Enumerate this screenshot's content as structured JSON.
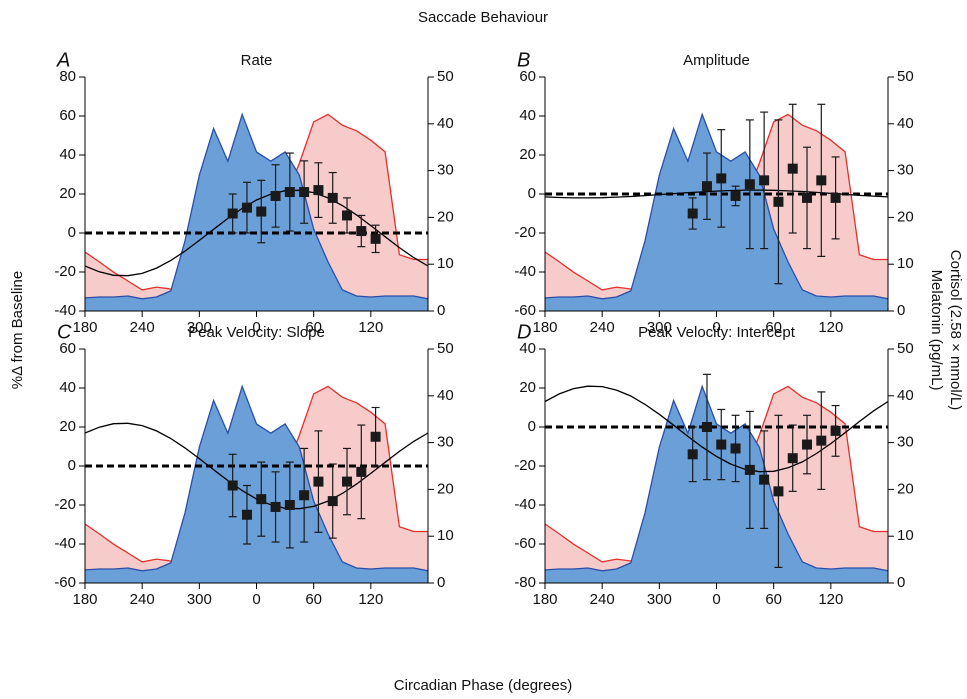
{
  "title": "Saccade Behaviour",
  "xlabel": "Circadian Phase (degrees)",
  "ylabel": "%Δ from Baseline",
  "y2label": [
    "Cortisol (2.58 × mmol/L)",
    "Melatonin (pg/mL)"
  ],
  "chart_data": [
    {
      "type": "line",
      "panel": "A",
      "title": "Rate",
      "x": [
        180,
        195,
        210,
        225,
        240,
        255,
        270,
        285,
        300,
        315,
        330,
        345,
        360,
        375,
        390,
        405,
        420,
        435,
        450,
        465,
        480,
        495,
        510,
        525,
        540
      ],
      "xlim": [
        180,
        540
      ],
      "xticks": [
        180,
        240,
        300,
        {
          "value": 360,
          "label": "0"
        },
        {
          "value": 420,
          "label": "60"
        },
        {
          "value": 480,
          "label": "120"
        }
      ],
      "ylim": [
        -40,
        80
      ],
      "yticks": [
        -40,
        -20,
        0,
        20,
        40,
        60,
        80
      ],
      "y2lim": [
        0,
        50
      ],
      "y2ticks": [
        0,
        10,
        20,
        30,
        40,
        50
      ],
      "hline": 0,
      "series": [
        {
          "axis": "y2",
          "mark": "area",
          "color": "#e3302b",
          "fill": "#f8cbcb",
          "values": [
            12.6,
            10.5,
            8.3,
            6.4,
            4.5,
            5.1,
            4.7,
            4.5,
            5.1,
            4.9,
            6.4,
            8.8,
            12,
            17,
            23.7,
            31.6,
            40.4,
            42,
            39.7,
            38.5,
            36.5,
            34,
            12,
            11,
            11
          ]
        },
        {
          "axis": "y2",
          "mark": "area",
          "color": "#2b4fa8",
          "fill": "#6a9fd8",
          "values": [
            2.8,
            3.0,
            3.0,
            3.2,
            2.6,
            3.0,
            4.3,
            15,
            29,
            39,
            32,
            42,
            34,
            32,
            34,
            29,
            17.5,
            10.5,
            4.5,
            3.2,
            3.0,
            3.2,
            3.2,
            3.2,
            2.6
          ]
        },
        {
          "mark": "line",
          "color": "#000000",
          "values": [
            -16.9,
            -19.9,
            -21.7,
            -21.9,
            -20.7,
            -18.0,
            -14.1,
            -9.3,
            -3.8,
            1.9,
            7.5,
            12.6,
            16.9,
            19.9,
            21.7,
            21.9,
            20.7,
            18.0,
            14.1,
            9.3,
            3.8,
            -1.9,
            -7.5,
            -12.6,
            -16.9
          ]
        },
        {
          "mark": "points",
          "color": "#1a1a1a",
          "x": [
            335,
            350,
            365,
            380,
            395,
            410,
            425,
            440,
            455,
            470,
            485
          ],
          "values": [
            10,
            13,
            11,
            19,
            21,
            21,
            22,
            18,
            9,
            1,
            -3
          ],
          "errors": [
            10,
            13,
            16,
            16,
            20,
            16,
            14,
            13,
            9,
            8,
            7
          ]
        }
      ]
    },
    {
      "type": "line",
      "panel": "B",
      "title": "Amplitude",
      "x": [
        180,
        195,
        210,
        225,
        240,
        255,
        270,
        285,
        300,
        315,
        330,
        345,
        360,
        375,
        390,
        405,
        420,
        435,
        450,
        465,
        480,
        495,
        510,
        525,
        540
      ],
      "xlim": [
        180,
        540
      ],
      "xticks": [
        180,
        240,
        300,
        {
          "value": 360,
          "label": "0"
        },
        {
          "value": 420,
          "label": "60"
        },
        {
          "value": 480,
          "label": "120"
        }
      ],
      "ylim": [
        -60,
        60
      ],
      "yticks": [
        -60,
        -40,
        -20,
        0,
        20,
        40,
        60
      ],
      "y2lim": [
        0,
        50
      ],
      "y2ticks": [
        0,
        10,
        20,
        30,
        40,
        50
      ],
      "hline": 0,
      "series": [
        {
          "axis": "y2",
          "mark": "area",
          "color": "#e3302b",
          "fill": "#f8cbcb",
          "values": [
            12.6,
            10.5,
            8.3,
            6.4,
            4.5,
            5.1,
            4.7,
            4.5,
            5.1,
            4.9,
            6.4,
            8.8,
            12,
            17,
            23.7,
            31.6,
            40.4,
            42,
            39.7,
            38.5,
            36.5,
            34,
            12,
            11,
            11
          ]
        },
        {
          "axis": "y2",
          "mark": "area",
          "color": "#2b4fa8",
          "fill": "#6a9fd8",
          "values": [
            2.8,
            3.0,
            3.0,
            3.2,
            2.6,
            3.0,
            4.3,
            15,
            29,
            39,
            32,
            42,
            34,
            32,
            34,
            29,
            17.5,
            10.5,
            4.5,
            3.2,
            3.0,
            3.2,
            3.2,
            3.2,
            2.6
          ]
        },
        {
          "mark": "line",
          "color": "#000000",
          "values": [
            -1.5,
            -1.8,
            -2.0,
            -2.0,
            -1.9,
            -1.6,
            -1.3,
            -0.8,
            -0.3,
            0.2,
            0.7,
            1.1,
            1.5,
            1.8,
            2.0,
            2.0,
            1.9,
            1.6,
            1.3,
            0.8,
            0.3,
            -0.2,
            -0.7,
            -1.1,
            -1.5
          ]
        },
        {
          "mark": "points",
          "color": "#1a1a1a",
          "x": [
            335,
            350,
            365,
            380,
            395,
            410,
            425,
            440,
            455,
            470,
            485
          ],
          "values": [
            -10,
            4,
            8,
            -1,
            5,
            7,
            -4,
            13,
            -2,
            7,
            -2
          ],
          "errors": [
            8,
            17,
            25,
            5,
            33,
            35,
            42,
            33,
            26,
            39,
            21
          ]
        }
      ]
    },
    {
      "type": "line",
      "panel": "C",
      "title": "Peak Velocity: Slope",
      "x": [
        180,
        195,
        210,
        225,
        240,
        255,
        270,
        285,
        300,
        315,
        330,
        345,
        360,
        375,
        390,
        405,
        420,
        435,
        450,
        465,
        480,
        495,
        510,
        525,
        540
      ],
      "xlim": [
        180,
        540
      ],
      "xticks": [
        180,
        240,
        300,
        {
          "value": 360,
          "label": "0"
        },
        {
          "value": 420,
          "label": "60"
        },
        {
          "value": 480,
          "label": "120"
        }
      ],
      "ylim": [
        -60,
        60
      ],
      "yticks": [
        -60,
        -40,
        -20,
        0,
        20,
        40,
        60
      ],
      "y2lim": [
        0,
        50
      ],
      "y2ticks": [
        0,
        10,
        20,
        30,
        40,
        50
      ],
      "hline": 0,
      "series": [
        {
          "axis": "y2",
          "mark": "area",
          "color": "#e3302b",
          "fill": "#f8cbcb",
          "values": [
            12.6,
            10.5,
            8.3,
            6.4,
            4.5,
            5.1,
            4.7,
            4.5,
            5.1,
            4.9,
            6.4,
            8.8,
            12,
            17,
            23.7,
            31.6,
            40.4,
            42,
            39.7,
            38.5,
            36.5,
            34,
            12,
            11,
            11
          ]
        },
        {
          "axis": "y2",
          "mark": "area",
          "color": "#2b4fa8",
          "fill": "#6a9fd8",
          "values": [
            2.8,
            3.0,
            3.0,
            3.2,
            2.6,
            3.0,
            4.3,
            15,
            29,
            39,
            32,
            42,
            34,
            32,
            34,
            29,
            17.5,
            10.5,
            4.5,
            3.2,
            3.0,
            3.2,
            3.2,
            3.2,
            2.6
          ]
        },
        {
          "mark": "line",
          "color": "#000000",
          "values": [
            16.9,
            19.9,
            21.7,
            21.9,
            20.7,
            18.0,
            14.1,
            9.3,
            3.8,
            -1.9,
            -7.5,
            -12.6,
            -16.9,
            -19.9,
            -21.7,
            -21.9,
            -20.7,
            -18.0,
            -14.1,
            -9.3,
            -3.8,
            1.9,
            7.5,
            12.6,
            16.9
          ]
        },
        {
          "mark": "points",
          "color": "#1a1a1a",
          "x": [
            335,
            350,
            365,
            380,
            395,
            410,
            425,
            440,
            455,
            470,
            485
          ],
          "values": [
            -10,
            -25,
            -17,
            -21,
            -20,
            -15,
            -8,
            -18,
            -8,
            -3,
            15
          ],
          "errors": [
            16,
            15,
            19,
            18,
            22,
            24,
            26,
            19,
            17,
            24,
            15
          ]
        }
      ]
    },
    {
      "type": "line",
      "panel": "D",
      "title": "Peak Velocity: Intercept",
      "x": [
        180,
        195,
        210,
        225,
        240,
        255,
        270,
        285,
        300,
        315,
        330,
        345,
        360,
        375,
        390,
        405,
        420,
        435,
        450,
        465,
        480,
        495,
        510,
        525,
        540
      ],
      "xlim": [
        180,
        540
      ],
      "xticks": [
        180,
        240,
        300,
        {
          "value": 360,
          "label": "0"
        },
        {
          "value": 420,
          "label": "60"
        },
        {
          "value": 480,
          "label": "120"
        }
      ],
      "ylim": [
        -80,
        40
      ],
      "yticks": [
        -80,
        -60,
        -40,
        -20,
        0,
        20,
        40
      ],
      "y2lim": [
        0,
        50
      ],
      "y2ticks": [
        0,
        10,
        20,
        30,
        40,
        50
      ],
      "hline": 0,
      "series": [
        {
          "axis": "y2",
          "mark": "area",
          "color": "#e3302b",
          "fill": "#f8cbcb",
          "values": [
            12.6,
            10.5,
            8.3,
            6.4,
            4.5,
            5.1,
            4.7,
            4.5,
            5.1,
            4.9,
            6.4,
            8.8,
            12,
            17,
            23.7,
            31.6,
            40.4,
            42,
            39.7,
            38.5,
            36.5,
            34,
            12,
            11,
            11
          ]
        },
        {
          "axis": "y2",
          "mark": "area",
          "color": "#2b4fa8",
          "fill": "#6a9fd8",
          "values": [
            2.8,
            3.0,
            3.0,
            3.2,
            2.6,
            3.0,
            4.3,
            15,
            29,
            39,
            32,
            42,
            34,
            32,
            34,
            29,
            17.5,
            10.5,
            4.5,
            3.2,
            3.0,
            3.2,
            3.2,
            3.2,
            2.6
          ]
        },
        {
          "mark": "line",
          "color": "#000000",
          "values": [
            13.1,
            17.0,
            19.7,
            20.9,
            20.7,
            18.9,
            15.9,
            11.6,
            6.5,
            0.9,
            -4.8,
            -10.3,
            -15.1,
            -19.0,
            -21.7,
            -22.9,
            -22.7,
            -20.9,
            -17.9,
            -13.6,
            -8.5,
            -2.9,
            2.8,
            8.3,
            13.1
          ]
        },
        {
          "mark": "points",
          "color": "#1a1a1a",
          "x": [
            335,
            350,
            365,
            380,
            395,
            410,
            425,
            440,
            455,
            470,
            485
          ],
          "values": [
            -14,
            0,
            -9,
            -11,
            -22,
            -27,
            -33,
            -16,
            -9,
            -7,
            -2
          ],
          "errors": [
            14,
            27,
            18,
            17,
            30,
            25,
            39,
            17,
            15,
            25,
            13
          ]
        }
      ]
    }
  ]
}
